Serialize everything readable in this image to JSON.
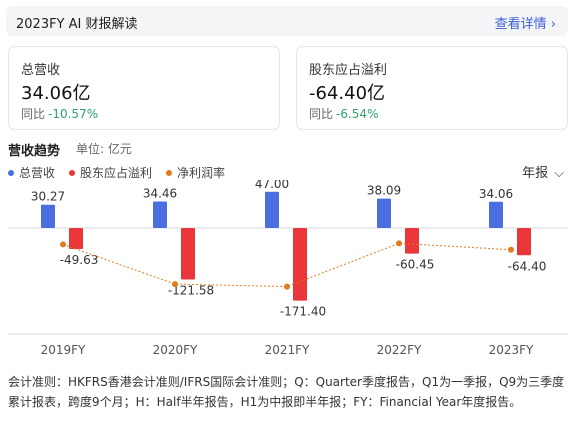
{
  "header": {
    "title": "2023FY AI 财报解读",
    "link_label": "查看详情 ›"
  },
  "cards": [
    {
      "label": "总营收",
      "value": "34.06亿",
      "yoy_label": "同比",
      "yoy_value": "-10.57%"
    },
    {
      "label": "股东应占溢利",
      "value": "-64.40亿",
      "yoy_label": "同比",
      "yoy_value": "-6.54%"
    }
  ],
  "section": {
    "title": "营收趋势",
    "unit": "单位: 亿元",
    "period": "年报",
    "period_icon": "chevron-down-icon"
  },
  "colors": {
    "revenue": "#4a6ee0",
    "profit": "#e8363a",
    "margin": "#e07b1e",
    "positive": "#2ea36b"
  },
  "chart_data": {
    "type": "bar",
    "categories": [
      "2019FY",
      "2020FY",
      "2021FY",
      "2022FY",
      "2023FY"
    ],
    "series": [
      {
        "name": "总营收",
        "values": [
          30.27,
          34.46,
          47.0,
          38.09,
          34.06
        ]
      },
      {
        "name": "股东应占溢利",
        "values": [
          -49.63,
          -121.58,
          -171.4,
          -60.45,
          -64.4
        ]
      },
      {
        "name": "净利润率",
        "type": "line"
      }
    ],
    "legend_position": "top-left",
    "grid": false
  },
  "footnote": "会计准则：HKFRS香港会计准则/IFRS国际会计准则；Q：Quarter季度报告，Q1为一季报，Q9为三季度累计报表，跨度9个月；H：Half半年报告，H1为中报即半年报；FY：Financial Year年度报告。"
}
